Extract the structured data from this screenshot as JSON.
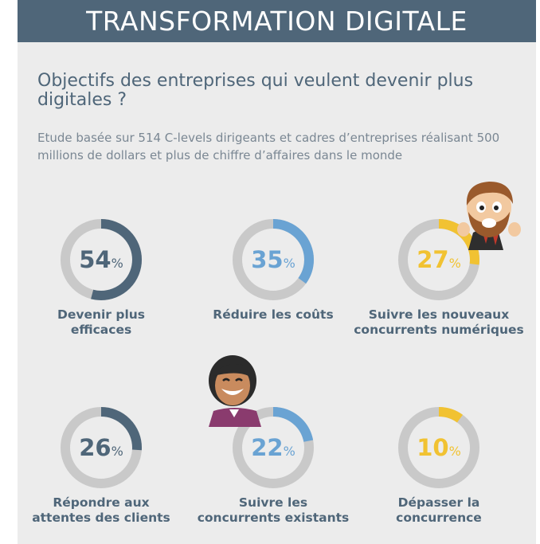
{
  "header": {
    "title": "TRANSFORMATION DIGITALE"
  },
  "question": "Objectifs des entreprises qui veulent devenir plus digitales ?",
  "study": "Etude basée sur 514 C-levels dirigeants et cadres d’entreprises réalisant 500 millions de dollars et plus de chiffre d’affaires dans le monde",
  "colors": {
    "navy": "#4f6679",
    "blue": "#6aa3d3",
    "yellow": "#f1c232",
    "track": "#c9c9c9"
  },
  "chart_data": {
    "type": "donut",
    "unit": "%",
    "items": [
      {
        "value": 54,
        "label_lines": [
          "Devenir plus",
          "efficaces"
        ],
        "color": "#4f6679"
      },
      {
        "value": 35,
        "label_lines": [
          "Réduire les coûts"
        ],
        "color": "#6aa3d3"
      },
      {
        "value": 27,
        "label_lines": [
          "Suivre les nouveaux",
          "concurrents numériques"
        ],
        "color": "#f1c232"
      },
      {
        "value": 26,
        "label_lines": [
          "Répondre aux",
          "attentes des clients"
        ],
        "color": "#4f6679"
      },
      {
        "value": 22,
        "label_lines": [
          "Suivre les",
          "concurrents existants"
        ],
        "color": "#6aa3d3"
      },
      {
        "value": 10,
        "label_lines": [
          "Dépasser la",
          "concurrence"
        ],
        "color": "#f1c232"
      }
    ]
  }
}
